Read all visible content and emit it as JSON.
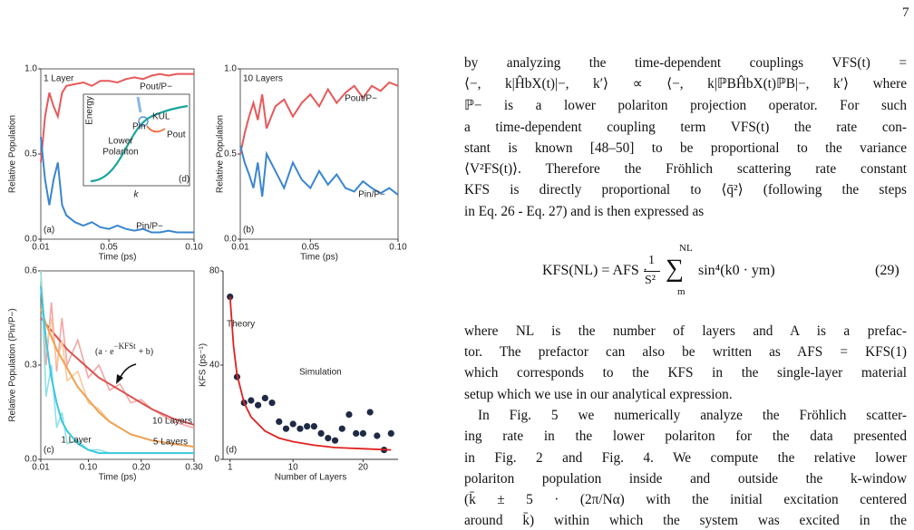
{
  "page": {
    "number": "7",
    "paragraph_1": [
      "by analyzing the time-dependent couplings VFS(t) =",
      "⟨−, k|ĤbX(t)|−, k′⟩ ∝ ⟨−, k|ℙBĤbX(t)ℙB|−, k′⟩ where",
      "ℙ− is a lower polariton projection operator. For such",
      "a time-dependent coupling term VFS(t) the rate con-",
      "stant is known [48–50] to be proportional to the variance",
      "⟨V²FS(t)⟩. Therefore the Fröhlich scattering rate constant",
      "KFS is directly proportional to ⟨q̄²⟩ (following the steps",
      "in Eq. 26 - Eq. 27) and is then expressed as"
    ],
    "equation": {
      "lhs": "KFS(NL) = AFS ·",
      "numerator": "1",
      "denominator": "S²",
      "sum": "∑",
      "sum_upper": "NL",
      "sum_lower": "m",
      "rhs": "sin⁴(k0 · ym)",
      "number": "(29)"
    },
    "paragraph_2": [
      "where NL is the number of layers and A is a prefac-",
      "tor. The prefactor can also be written as AFS = KFS(1)",
      "which corresponds to the KFS in the single-layer material",
      "setup which we use in our analytical expression."
    ],
    "paragraph_3": [
      "In Fig. 5 we numerically analyze the Fröhlich scatter-",
      "ing rate in the lower polariton for the data presented",
      "in Fig. 2 and Fig. 4. We compute the relative lower",
      "polariton population inside and outside the k-window",
      "(k̄ ± 5 · (2π/Nα) with the initial excitation centered",
      "around k̄) within which the system was excited in the"
    ]
  },
  "chart_data": [
    {
      "type": "line",
      "title": "1 Layer",
      "panel_label": "(a)",
      "x_label": "Time (ps)",
      "y_label": "Relative Population",
      "x": [
        0.01,
        0.0125,
        0.015,
        0.0175,
        0.02,
        0.0225,
        0.025,
        0.03,
        0.035,
        0.04,
        0.045,
        0.05,
        0.055,
        0.06,
        0.065,
        0.07,
        0.075,
        0.08,
        0.085,
        0.09,
        0.095,
        0.1
      ],
      "series": [
        {
          "name": "Pout/P−",
          "color": "#e8585a",
          "values": [
            0.45,
            0.72,
            0.86,
            0.78,
            0.72,
            0.86,
            0.9,
            0.91,
            0.92,
            0.9,
            0.93,
            0.93,
            0.92,
            0.94,
            0.95,
            0.94,
            0.96,
            0.97,
            0.96,
            0.97,
            0.97,
            0.97
          ]
        },
        {
          "name": "Pin/P−",
          "color": "#3a86d0",
          "values": [
            0.6,
            0.35,
            0.2,
            0.35,
            0.45,
            0.2,
            0.14,
            0.1,
            0.08,
            0.1,
            0.07,
            0.06,
            0.08,
            0.06,
            0.05,
            0.06,
            0.04,
            0.04,
            0.05,
            0.04,
            0.04,
            0.04
          ]
        }
      ],
      "xlim": [
        0.01,
        0.1
      ],
      "xticks": [
        0.01,
        0.05,
        {
          "value": 0.1,
          "label": "0.10"
        }
      ],
      "ylim": [
        0,
        1
      ],
      "yticks": [
        {
          "value": 0,
          "label": "0.0"
        },
        {
          "value": 0.5,
          "label": "0.5"
        },
        {
          "value": 1,
          "label": "1.0"
        }
      ],
      "inset": {
        "y_label": "Energy",
        "x_label": "k",
        "curve_label_1": "Lower",
        "curve_label_2": "Polariton",
        "arrow_label": "KUL",
        "in_label": "Pin",
        "out_label": "Pout",
        "panel_label": "(d)"
      }
    },
    {
      "type": "line",
      "title": "10 Layers",
      "panel_label": "(b)",
      "x_label": "Time (ps)",
      "y_label": "Relative Population",
      "x": [
        0.01,
        0.0125,
        0.015,
        0.0175,
        0.02,
        0.0225,
        0.025,
        0.03,
        0.035,
        0.04,
        0.045,
        0.05,
        0.055,
        0.06,
        0.065,
        0.07,
        0.075,
        0.08,
        0.085,
        0.09,
        0.095,
        0.1
      ],
      "series": [
        {
          "name": "Pout/P−",
          "color": "#e8585a",
          "values": [
            0.5,
            0.62,
            0.72,
            0.8,
            0.7,
            0.85,
            0.65,
            0.78,
            0.82,
            0.72,
            0.8,
            0.85,
            0.78,
            0.88,
            0.8,
            0.86,
            0.9,
            0.83,
            0.9,
            0.87,
            0.92,
            0.9
          ]
        },
        {
          "name": "Pin/P−",
          "color": "#3a86d0",
          "values": [
            0.55,
            0.45,
            0.38,
            0.3,
            0.45,
            0.25,
            0.5,
            0.4,
            0.3,
            0.45,
            0.35,
            0.3,
            0.4,
            0.32,
            0.38,
            0.3,
            0.28,
            0.34,
            0.3,
            0.27,
            0.3,
            0.26
          ]
        }
      ],
      "xlim": [
        0.01,
        0.1
      ],
      "xticks": [
        0.01,
        0.05,
        {
          "value": 0.1,
          "label": "0.10"
        }
      ],
      "ylim": [
        0,
        1
      ],
      "yticks": [
        {
          "value": 0,
          "label": "0.0"
        },
        {
          "value": 0.5,
          "label": "0.5"
        },
        {
          "value": 1,
          "label": "1.0"
        }
      ]
    },
    {
      "type": "line",
      "panel_label": "(c)",
      "x_label": "Time (ps)",
      "y_label": "Relative Population (Pin/P−)",
      "annotation_base": "(a · e",
      "annotation_exponent": "−KFSt",
      "annotation_tail": "+ b)",
      "x": [
        0.01,
        0.02,
        0.03,
        0.04,
        0.05,
        0.06,
        0.08,
        0.1,
        0.12,
        0.14,
        0.16,
        0.18,
        0.2,
        0.22,
        0.26,
        0.3
      ],
      "series": [
        {
          "name": "10 Layers",
          "color": "#f4a6a6",
          "values": [
            0.6,
            0.3,
            0.5,
            0.28,
            0.45,
            0.3,
            0.38,
            0.26,
            0.3,
            0.22,
            0.24,
            0.18,
            0.19,
            0.16,
            0.12,
            0.1
          ],
          "fit_color": "#d9534f",
          "fit": [
            0.45,
            0.43,
            0.41,
            0.39,
            0.37,
            0.35,
            0.32,
            0.29,
            0.26,
            0.24,
            0.22,
            0.2,
            0.18,
            0.16,
            0.13,
            0.11
          ]
        },
        {
          "name": "5 Layers",
          "color": "#f8c99a",
          "values": [
            0.6,
            0.35,
            0.45,
            0.3,
            0.38,
            0.25,
            0.28,
            0.18,
            0.16,
            0.12,
            0.1,
            0.08,
            0.07,
            0.06,
            0.05,
            0.04
          ],
          "fit_color": "#f0a050",
          "fit": [
            0.48,
            0.43,
            0.39,
            0.35,
            0.32,
            0.29,
            0.23,
            0.19,
            0.15,
            0.12,
            0.1,
            0.08,
            0.07,
            0.06,
            0.05,
            0.04
          ]
        },
        {
          "name": "1 Layer",
          "color": "#8fe0ea",
          "values": [
            0.6,
            0.2,
            0.3,
            0.1,
            0.15,
            0.05,
            0.06,
            0.03,
            0.03,
            0.02,
            0.02,
            0.02,
            0.02,
            0.02,
            0.02,
            0.02
          ],
          "fit_color": "#3cc8dc",
          "fit": [
            0.55,
            0.38,
            0.26,
            0.18,
            0.12,
            0.09,
            0.05,
            0.03,
            0.02,
            0.02,
            0.02,
            0.02,
            0.02,
            0.02,
            0.02,
            0.02
          ]
        }
      ],
      "xlim": [
        0.01,
        0.3
      ],
      "xticks": [
        0.01,
        {
          "value": 0.1,
          "label": "0.10"
        },
        {
          "value": 0.2,
          "label": "0.20"
        },
        {
          "value": 0.3,
          "label": "0.30"
        }
      ],
      "ylim": [
        0,
        0.6
      ],
      "yticks": [
        {
          "value": 0,
          "label": "0.0"
        },
        0.3,
        0.6
      ]
    },
    {
      "type": "scatter",
      "panel_label": "(d)",
      "x_label": "Number of Layers",
      "y_label": "KFS (ps⁻¹)",
      "series": [
        {
          "name": "Simulation",
          "color": "#1f2a44",
          "x": [
            1,
            2,
            3,
            4,
            5,
            6,
            7,
            8,
            9,
            10,
            11,
            12,
            13,
            14,
            15,
            16,
            17,
            18,
            19,
            20,
            21,
            22,
            23,
            24
          ],
          "values": [
            69,
            35,
            24,
            25,
            23,
            26,
            24,
            16,
            13,
            15,
            13,
            14,
            14,
            11,
            9,
            8,
            13,
            19,
            11,
            11,
            20,
            10,
            4,
            11
          ]
        },
        {
          "name": "Theory",
          "color": "#e02020",
          "x": [
            1,
            1.5,
            2,
            3,
            4,
            5,
            6,
            8,
            10,
            13,
            16,
            20,
            24
          ],
          "values": [
            69,
            48,
            36,
            24,
            18,
            15,
            12,
            9,
            7.5,
            6,
            5,
            4.5,
            4
          ]
        }
      ],
      "xlim": [
        0,
        25
      ],
      "xticks": [
        1,
        10,
        20
      ],
      "ylim": [
        0,
        80
      ],
      "yticks": [
        0,
        40,
        80
      ]
    }
  ]
}
